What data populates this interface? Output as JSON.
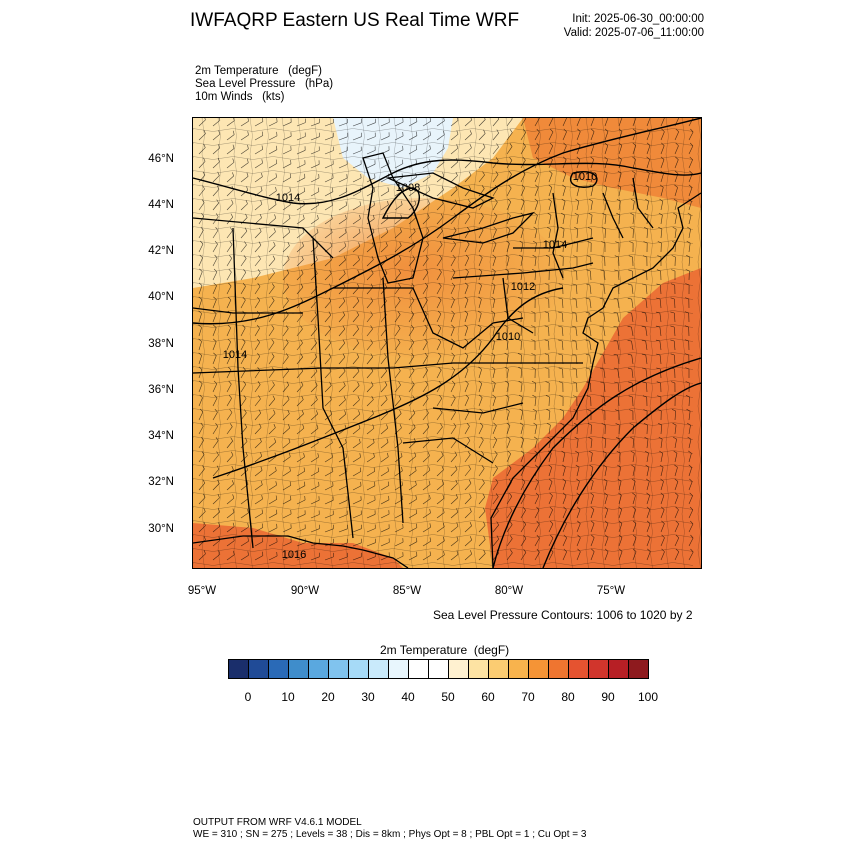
{
  "header": {
    "title": "IWFAQRP Eastern US Real Time WRF",
    "init": "Init: 2025-06-30_00:00:00",
    "valid": "Valid: 2025-07-06_11:00:00"
  },
  "fields": [
    "2m Temperature   (degF)",
    "Sea Level Pressure   (hPa)",
    "10m Winds   (kts)"
  ],
  "map": {
    "lat_labels": [
      "46°N",
      "44°N",
      "42°N",
      "40°N",
      "38°N",
      "36°N",
      "34°N",
      "32°N",
      "30°N"
    ],
    "lon_labels": [
      "95°W",
      "90°W",
      "85°W",
      "80°W",
      "75°W"
    ],
    "isobar_labels": [
      "1014",
      "1010",
      "1008",
      "1014",
      "1012",
      "1010",
      "1014",
      "1016"
    ],
    "colors": {
      "land_warm": "#f5b24f",
      "land_hot": "#f08a3a",
      "ocean_hot": "#ec7236",
      "north_cool": "#fde6b3",
      "north_cold": "#e8f4fb",
      "boundary": "#000000"
    }
  },
  "slp_note": "Sea Level Pressure Contours: 1006 to 1020 by 2",
  "colorbar": {
    "title": "2m Temperature  (degF)",
    "colors": [
      "#1a2e6b",
      "#204b97",
      "#2a6ab7",
      "#3f8dcb",
      "#5aa8df",
      "#80c3ee",
      "#a6daf7",
      "#c9eafb",
      "#e8f6fd",
      "#ffffff",
      "#ffffff",
      "#fff1d0",
      "#fde3a3",
      "#fbcc72",
      "#f8b34d",
      "#f59436",
      "#ef7530",
      "#e55330",
      "#d1352c",
      "#b71f25",
      "#8e1a1e"
    ],
    "labels": [
      "0",
      "10",
      "20",
      "30",
      "40",
      "50",
      "60",
      "70",
      "80",
      "90",
      "100"
    ]
  },
  "footer": {
    "line1": "OUTPUT FROM WRF V4.6.1 MODEL",
    "line2": "WE = 310 ; SN = 275 ; Levels = 38 ; Dis = 8km ; Phys Opt = 8 ; PBL Opt = 1 ; Cu Opt = 3"
  }
}
